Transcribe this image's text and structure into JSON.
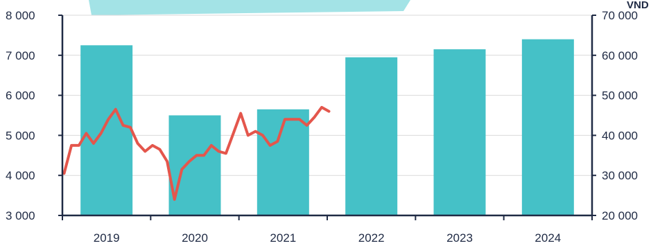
{
  "colors": {
    "bar": "#45c1c7",
    "line": "#e4564c",
    "axis": "#1f2a44",
    "grid": "#d9d9d9",
    "banner": "#a3e3e6",
    "text": "#1f2a44"
  },
  "chart_data": {
    "type": "bar",
    "title": "",
    "xlabel": "",
    "ylabel": "",
    "y2label": "VND",
    "categories": [
      "2019",
      "2020",
      "2021",
      "2022",
      "2023",
      "2024"
    ],
    "ylim": [
      3000,
      8000
    ],
    "y2lim": [
      20000,
      70000
    ],
    "yticks": [
      "3 000",
      "4 000",
      "5 000",
      "6 000",
      "7 000",
      "8 000"
    ],
    "y2ticks": [
      "20 000",
      "30 000",
      "40 000",
      "50 000",
      "60 000",
      "70 000"
    ],
    "grid": true,
    "series": [
      {
        "type": "bar",
        "axis": "left",
        "values": [
          7250,
          5500,
          5650,
          6950,
          7150,
          7400
        ]
      },
      {
        "type": "line",
        "axis": "right",
        "x": [
          0.0,
          0.083,
          0.167,
          0.25,
          0.333,
          0.417,
          0.5,
          0.583,
          0.667,
          0.75,
          0.833,
          0.917,
          1.0,
          1.083,
          1.167,
          1.25,
          1.333,
          1.417,
          1.5,
          1.583,
          1.667,
          1.75,
          1.833,
          1.917,
          2.0,
          2.083,
          2.167,
          2.25,
          2.333,
          2.417,
          2.5,
          2.583,
          2.667,
          2.75,
          2.833,
          2.917,
          3.0
        ],
        "values": [
          30500,
          37500,
          37500,
          40500,
          38000,
          40500,
          44000,
          46500,
          42500,
          42000,
          38000,
          36000,
          37500,
          36500,
          33500,
          24000,
          31500,
          33500,
          35000,
          35000,
          37500,
          36000,
          35500,
          40500,
          45500,
          40000,
          41000,
          40000,
          37500,
          38500,
          44000,
          44000,
          44000,
          42500,
          44500,
          47000,
          46000
        ]
      }
    ]
  }
}
